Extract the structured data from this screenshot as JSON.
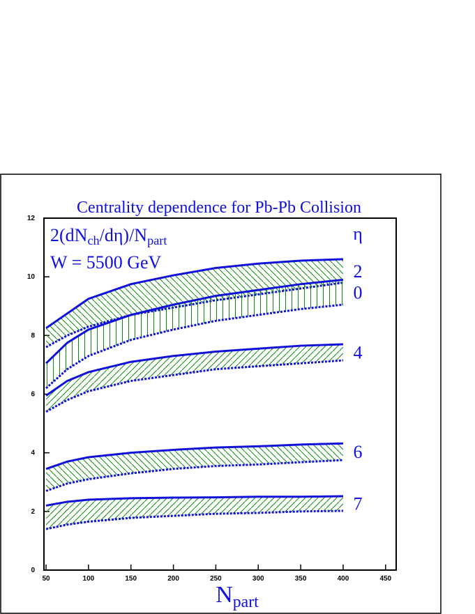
{
  "chart_data": {
    "type": "band",
    "title": "Centrality dependence for Pb-Pb Collision",
    "annotations": [
      [
        {
          "text": "2(dN"
        },
        {
          "text": "ch",
          "sub": true
        },
        {
          "text": "/dη)/N"
        },
        {
          "text": "part",
          "sub": true
        }
      ],
      [
        {
          "text": "W = 5500 GeV"
        }
      ]
    ],
    "legend_title": "η",
    "x_label": [
      {
        "text": "N"
      },
      {
        "text": "part",
        "sub": true
      }
    ],
    "x": [
      50,
      75,
      100,
      150,
      200,
      250,
      300,
      350,
      400
    ],
    "series": [
      {
        "name": "2",
        "hatch": "backslash",
        "upper": [
          8.25,
          8.75,
          9.25,
          9.75,
          10.05,
          10.3,
          10.45,
          10.55,
          10.6
        ],
        "lower": [
          7.6,
          8.0,
          8.3,
          8.7,
          8.95,
          9.2,
          9.4,
          9.6,
          9.8
        ]
      },
      {
        "name": "0",
        "hatch": "vertical",
        "upper": [
          7.05,
          7.75,
          8.2,
          8.7,
          9.05,
          9.35,
          9.55,
          9.75,
          9.9
        ],
        "lower": [
          6.2,
          6.85,
          7.3,
          7.85,
          8.2,
          8.5,
          8.7,
          8.9,
          9.05
        ]
      },
      {
        "name": "4",
        "hatch": "slash",
        "upper": [
          5.95,
          6.45,
          6.75,
          7.1,
          7.3,
          7.45,
          7.55,
          7.65,
          7.7
        ],
        "lower": [
          5.4,
          5.8,
          6.1,
          6.45,
          6.65,
          6.85,
          6.95,
          7.05,
          7.15
        ]
      },
      {
        "name": "6",
        "hatch": "backslash",
        "upper": [
          3.45,
          3.7,
          3.85,
          4.0,
          4.1,
          4.18,
          4.22,
          4.28,
          4.32
        ],
        "lower": [
          2.7,
          2.95,
          3.1,
          3.3,
          3.45,
          3.55,
          3.6,
          3.68,
          3.75
        ]
      },
      {
        "name": "7",
        "hatch": "slash",
        "upper": [
          2.2,
          2.33,
          2.4,
          2.45,
          2.47,
          2.48,
          2.5,
          2.5,
          2.52
        ],
        "lower": [
          1.4,
          1.55,
          1.65,
          1.78,
          1.85,
          1.92,
          1.95,
          2.0,
          2.02
        ]
      }
    ],
    "line_color": "#1010d8",
    "hatch_color": "#0a8a0a",
    "text_color": "#1010e0",
    "xlim": [
      47.5,
      462.5
    ],
    "xticks": [
      50,
      100,
      150,
      200,
      250,
      300,
      350,
      400,
      450
    ],
    "ylim": [
      0,
      12
    ],
    "yticks": [
      0,
      2,
      4,
      6,
      8,
      10,
      12
    ]
  }
}
